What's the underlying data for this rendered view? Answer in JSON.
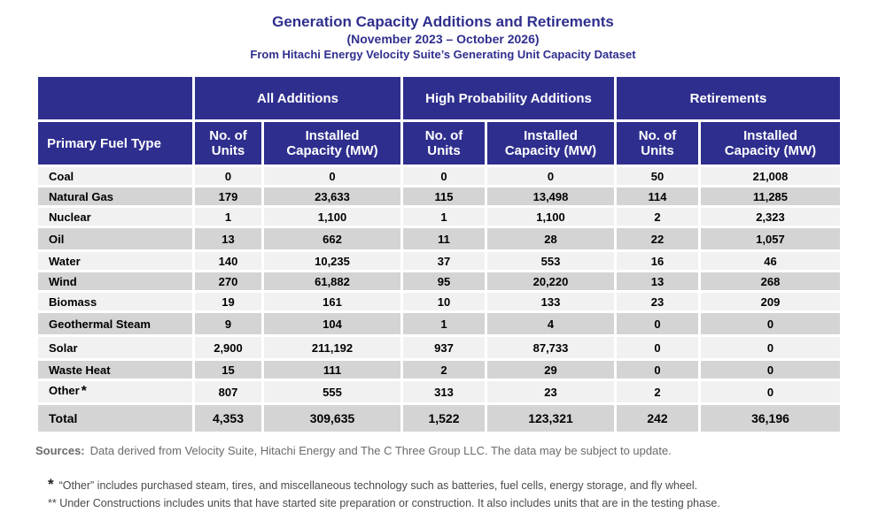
{
  "title": "Generation Capacity Additions and Retirements",
  "subtitle": "(November 2023 – October 2026)",
  "source_line": "From Hitachi Energy Velocity Suite’s Generating Unit Capacity Dataset",
  "groups": [
    "All Additions",
    "High Probability Additions",
    "Retirements"
  ],
  "headers": {
    "fuel": "Primary Fuel Type",
    "units": [
      "No. of",
      "Units"
    ],
    "capacity": [
      "Installed",
      "Capacity (MW)"
    ]
  },
  "rows": [
    {
      "fuel": "Coal",
      "values": [
        "0",
        "0",
        "0",
        "0",
        "50",
        "21,008"
      ]
    },
    {
      "fuel": "Natural Gas",
      "values": [
        "179",
        "23,633",
        "115",
        "13,498",
        "114",
        "11,285"
      ]
    },
    {
      "fuel": "Nuclear",
      "values": [
        "1",
        "1,100",
        "1",
        "1,100",
        "2",
        "2,323"
      ]
    },
    {
      "fuel": "Oil",
      "values": [
        "13",
        "662",
        "11",
        "28",
        "22",
        "1,057"
      ]
    },
    {
      "fuel": "Water",
      "values": [
        "140",
        "10,235",
        "37",
        "553",
        "16",
        "46"
      ]
    },
    {
      "fuel": "Wind",
      "values": [
        "270",
        "61,882",
        "95",
        "20,220",
        "13",
        "268"
      ]
    },
    {
      "fuel": "Biomass",
      "values": [
        "19",
        "161",
        "10",
        "133",
        "23",
        "209"
      ]
    },
    {
      "fuel": "Geothermal Steam",
      "values": [
        "9",
        "104",
        "1",
        "4",
        "0",
        "0"
      ]
    },
    {
      "fuel": "Solar",
      "values": [
        "2,900",
        "211,192",
        "937",
        "87,733",
        "0",
        "0"
      ]
    },
    {
      "fuel": "Waste Heat",
      "values": [
        "15",
        "111",
        "2",
        "29",
        "0",
        "0"
      ]
    },
    {
      "fuel": "Other",
      "values": [
        "807",
        "555",
        "313",
        "23",
        "2",
        "0"
      ]
    }
  ],
  "other_marker": "*",
  "total": {
    "fuel": "Total",
    "values": [
      "4,353",
      "309,635",
      "1,522",
      "123,321",
      "242",
      "36,196"
    ]
  },
  "sources": {
    "label": "Sources:",
    "text": "Data derived from Velocity Suite, Hitachi Energy and The C Three Group LLC.  The data may be subject to update."
  },
  "notes": {
    "star_marker": "*",
    "star_note": "“Other” includes purchased steam, tires, and miscellaneous technology such as batteries, fuel cells, energy storage, and fly wheel.",
    "double_star_note": "** Under Constructions includes units that have started site preparation or construction.  It also includes units that are in the testing phase."
  }
}
